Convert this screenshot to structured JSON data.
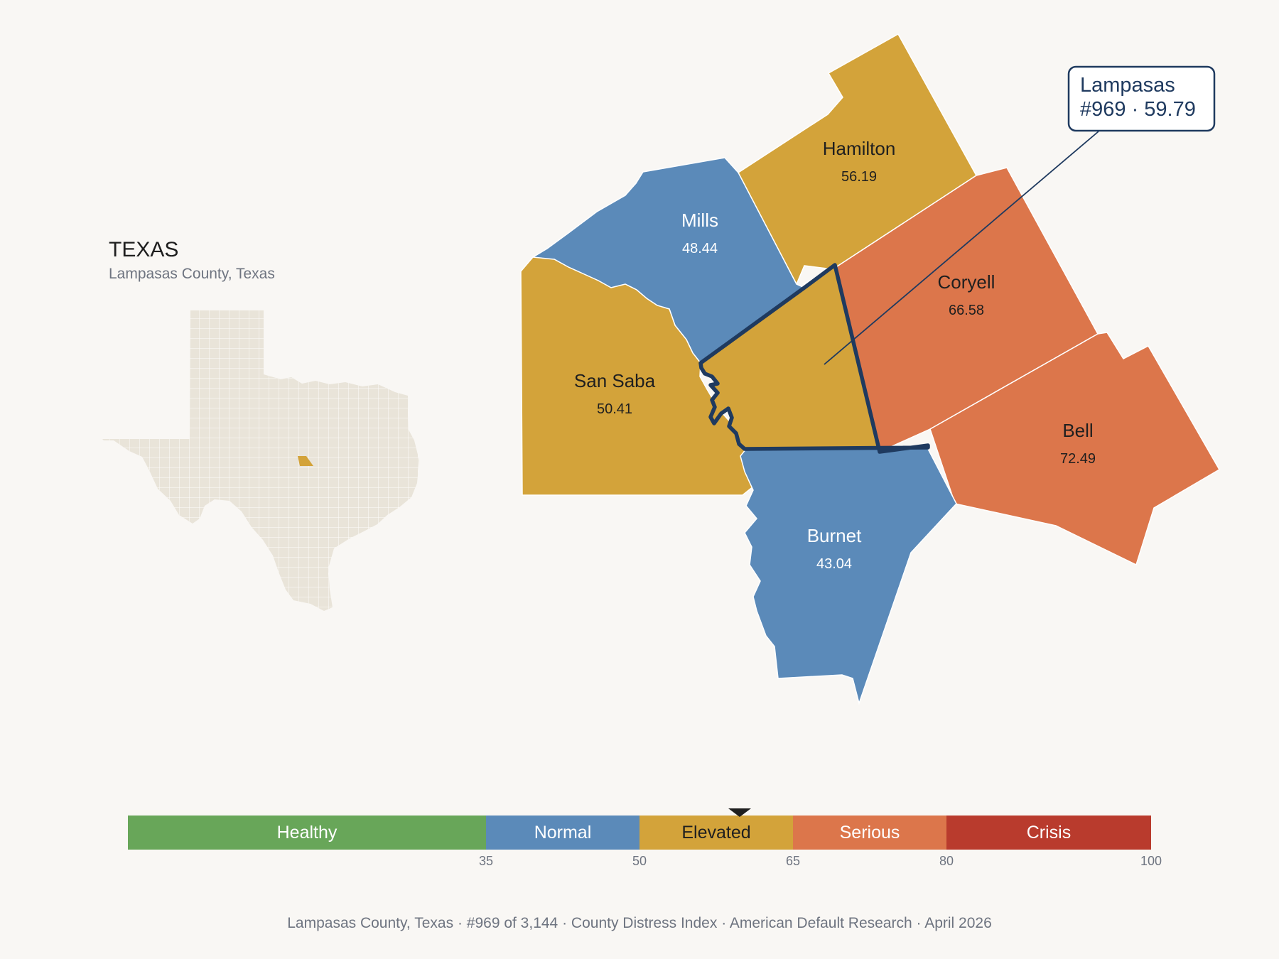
{
  "colors": {
    "background": "#f9f7f4",
    "healthy": "#68a659",
    "normal": "#5b8ab9",
    "elevated": "#d3a33a",
    "serious": "#dc764b",
    "crisis": "#b93b2d",
    "highlight_outline": "#1f3a5f",
    "inset_fill": "#e9e4d9"
  },
  "inset": {
    "state": "TEXAS",
    "subtitle": "Lampasas County, Texas"
  },
  "counties": [
    {
      "name": "Hamilton",
      "value": "56.19",
      "category": "elevated"
    },
    {
      "name": "Mills",
      "value": "48.44",
      "category": "normal"
    },
    {
      "name": "Coryell",
      "value": "66.58",
      "category": "serious"
    },
    {
      "name": "San Saba",
      "value": "50.41",
      "category": "elevated"
    },
    {
      "name": "Bell",
      "value": "72.49",
      "category": "serious"
    },
    {
      "name": "Burnet",
      "value": "43.04",
      "category": "normal"
    },
    {
      "name": "Lampasas",
      "value": "59.79",
      "category": "elevated"
    }
  ],
  "callout": {
    "line1": "Lampasas",
    "line2": "#969 · 59.79"
  },
  "legend": {
    "segments": [
      {
        "label": "Healthy",
        "from": 0,
        "to": 35,
        "category": "healthy"
      },
      {
        "label": "Normal",
        "from": 35,
        "to": 50,
        "category": "normal"
      },
      {
        "label": "Elevated",
        "from": 50,
        "to": 65,
        "category": "elevated"
      },
      {
        "label": "Serious",
        "from": 65,
        "to": 80,
        "category": "serious"
      },
      {
        "label": "Crisis",
        "from": 80,
        "to": 100,
        "category": "crisis"
      }
    ],
    "ticks": [
      "35",
      "50",
      "65",
      "80",
      "100"
    ],
    "marker_value": 59.79
  },
  "footer": {
    "county": "Lampasas County, Texas",
    "rank": "#969 of 3,144",
    "index": "County Distress Index",
    "source": "American Default Research",
    "date": "April 2026",
    "separator": "·"
  }
}
